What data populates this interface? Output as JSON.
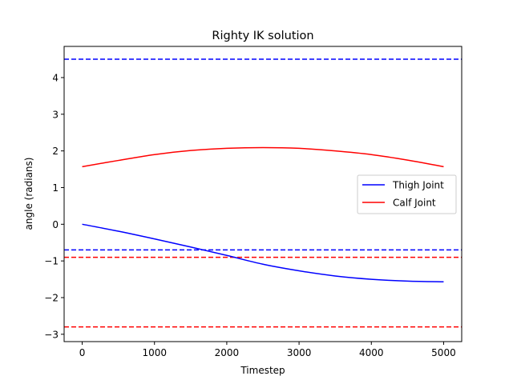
{
  "chart_data": {
    "type": "line",
    "title": "Righty IK solution",
    "xlabel": "Timestep",
    "ylabel": "angle (radians)",
    "xlim": [
      -250,
      5250
    ],
    "ylim": [
      -3.2,
      4.85
    ],
    "xticks": [
      0,
      1000,
      2000,
      3000,
      4000,
      5000
    ],
    "yticks": [
      -3,
      -2,
      -1,
      0,
      1,
      2,
      3,
      4
    ],
    "grid": false,
    "legend_position": "center-right",
    "series": [
      {
        "name": "Thigh Joint",
        "color": "#0000ff",
        "x": [
          0,
          500,
          1000,
          1500,
          2000,
          2500,
          3000,
          3500,
          4000,
          4500,
          5000
        ],
        "y": [
          0.0,
          -0.19,
          -0.4,
          -0.62,
          -0.85,
          -1.09,
          -1.27,
          -1.41,
          -1.5,
          -1.55,
          -1.57
        ]
      },
      {
        "name": "Calf Joint",
        "color": "#ff0000",
        "x": [
          0,
          500,
          1000,
          1500,
          2000,
          2500,
          3000,
          3500,
          4000,
          4500,
          5000
        ],
        "y": [
          1.57,
          1.74,
          1.9,
          2.01,
          2.07,
          2.09,
          2.07,
          2.0,
          1.9,
          1.75,
          1.57
        ]
      }
    ],
    "reference_lines": [
      {
        "y": 4.5,
        "color": "#0000ff",
        "style": "dashed"
      },
      {
        "y": -0.7,
        "color": "#0000ff",
        "style": "dashed"
      },
      {
        "y": -0.9,
        "color": "#ff0000",
        "style": "dashed"
      },
      {
        "y": -2.8,
        "color": "#ff0000",
        "style": "dashed"
      }
    ]
  }
}
